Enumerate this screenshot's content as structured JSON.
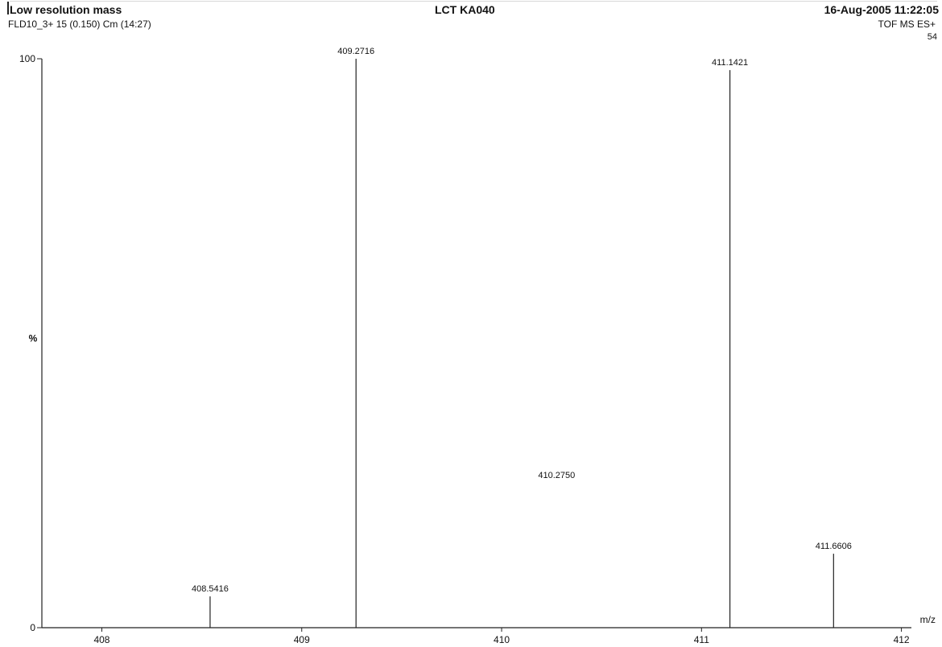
{
  "header": {
    "title": "Low resolution mass",
    "instrument": "LCT KA040",
    "datetime": "16-Aug-2005  11:22:05",
    "scan_info": "FLD10_3+ 15 (0.150) Cm (14:27)",
    "mode": "TOF MS ES+",
    "max_intensity": "54"
  },
  "chart_data": {
    "type": "bar",
    "xlabel": "m/z",
    "ylabel": "%",
    "xlim": [
      407.7,
      412.05
    ],
    "ylim": [
      0,
      100
    ],
    "x_ticks": [
      408,
      409,
      410,
      411,
      412
    ],
    "y_ticks": [
      0,
      100
    ],
    "grid": false,
    "peaks": [
      {
        "mz": 408.5416,
        "label": "408.5416",
        "intensity": 5.5
      },
      {
        "mz": 409.2716,
        "label": "409.2716",
        "intensity": 100
      },
      {
        "mz": 410.275,
        "label": "410.2750",
        "intensity": 0
      },
      {
        "mz": 411.1421,
        "label": "411.1421",
        "intensity": 98
      },
      {
        "mz": 411.6606,
        "label": "411.6606",
        "intensity": 13
      }
    ]
  }
}
